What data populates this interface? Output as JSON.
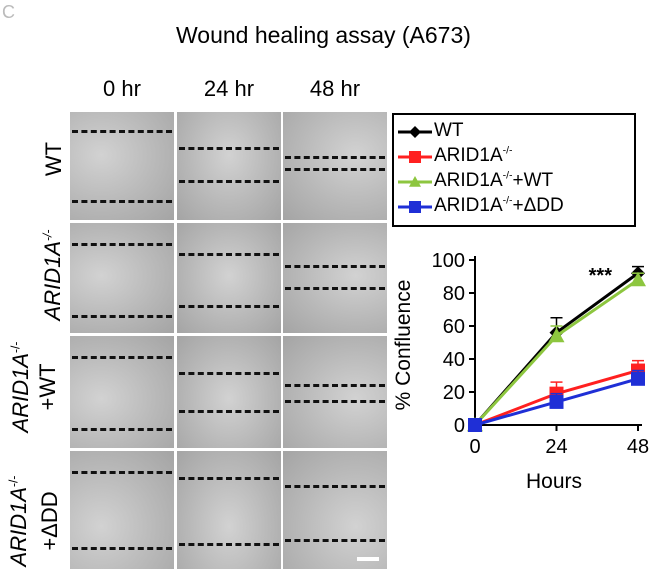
{
  "figure": {
    "panel_letter": "C",
    "title": "Wound healing assay (A673)",
    "time_labels": [
      "0 hr",
      "24 hr",
      "48 hr"
    ],
    "row_labels": [
      {
        "main": "WT",
        "sup": "",
        "second": ""
      },
      {
        "main": "ARID1A",
        "sup": "-/-",
        "second": ""
      },
      {
        "main": "ARID1A",
        "sup": "-/-",
        "second": "+WT"
      },
      {
        "main": "ARID1A",
        "sup": "-/-",
        "second": "+ΔDD"
      }
    ],
    "micrograph_tone": "#b8b8b8"
  },
  "legend": {
    "entries": [
      {
        "base": "WT",
        "sup": "",
        "suffix": "",
        "color": "#000000",
        "marker": "diamond"
      },
      {
        "base": "ARID1A",
        "sup": "-/-",
        "suffix": "",
        "color": "#ff2020",
        "marker": "square"
      },
      {
        "base": "ARID1A",
        "sup": "-/-",
        "suffix": "+WT",
        "color": "#8dc63f",
        "marker": "triangle"
      },
      {
        "base": "ARID1A",
        "sup": "-/-",
        "suffix": "+ΔDD",
        "color": "#1f2fd6",
        "marker": "square"
      }
    ]
  },
  "chart_data": {
    "type": "line",
    "x": [
      0,
      24,
      48
    ],
    "xlabel": "Hours",
    "ylabel": "% Confluence",
    "ylim": [
      0,
      100
    ],
    "yticks": [
      0,
      20,
      40,
      60,
      80,
      100
    ],
    "xticks": [
      0,
      24,
      48
    ],
    "annotation": "***",
    "series": [
      {
        "name": "WT",
        "values": [
          0,
          56,
          92
        ],
        "errors": [
          0,
          9,
          4
        ],
        "color": "#000000",
        "marker": "diamond"
      },
      {
        "name": "ARID1A-/-",
        "values": [
          0,
          19,
          33
        ],
        "errors": [
          0,
          7,
          6
        ],
        "color": "#ff2020",
        "marker": "square"
      },
      {
        "name": "ARID1A-/-+WT",
        "values": [
          0,
          54,
          88
        ],
        "errors": [
          0,
          6,
          4
        ],
        "color": "#8dc63f",
        "marker": "triangle"
      },
      {
        "name": "ARID1A-/-+ΔDD",
        "values": [
          0,
          14,
          28
        ],
        "errors": [
          0,
          5,
          5
        ],
        "color": "#1f2fd6",
        "marker": "square"
      }
    ]
  }
}
